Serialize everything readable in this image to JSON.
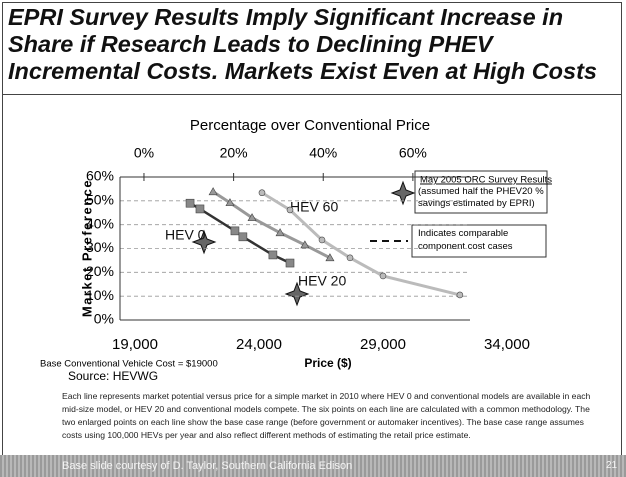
{
  "slide": {
    "title": "EPRI Survey Results Imply Significant Increase in Share if Research Leads to Declining PHEV Incremental Costs. Markets Exist Even at High Costs",
    "caption": "Each line represents market potential versus price for a simple market in 2010 where HEV 0 and conventional models are available in each mid-size model, or HEV 20 and conventional models compete. The six points on each line are calculated with a common methodology. The two enlarged points on each line show the base case range (before government or automaker incentives). The base case range assumes costs using 100,000 HEVs per year and also reflect different methods of estimating the retail price estimate.",
    "footer": "Base slide courtesy of D. Taylor, Southern California Edison",
    "page_number": "21"
  },
  "chart_data": {
    "type": "line",
    "title": "Percentage over Conventional Price",
    "x_label": "Price ($)",
    "y_label": "Market Preference",
    "annotations": [
      "May 2005 ORC Survey Results",
      "(assumed half the PHEV20 % savings estimated by EPRI)",
      "Indicates comparable component cost cases",
      "Base Conventional Vehicle Cost = $19000",
      "Source: HEVWG"
    ],
    "xlim": [
      19000,
      34000
    ],
    "xticks": [
      {
        "value": 19000,
        "label": "19,000"
      },
      {
        "value": 24000,
        "label": "24,000"
      },
      {
        "value": 29000,
        "label": "29,000"
      },
      {
        "value": 34000,
        "label": "34,000"
      }
    ],
    "x2lim": [
      -2,
      81
    ],
    "x2ticks": [
      {
        "value": 0,
        "label": "0%"
      },
      {
        "value": 20,
        "label": "20%"
      },
      {
        "value": 40,
        "label": "40%"
      },
      {
        "value": 60,
        "label": "60%"
      }
    ],
    "ylim": [
      0,
      60
    ],
    "yticks": [
      {
        "value": 0,
        "label": "0%"
      },
      {
        "value": 10,
        "label": "10%"
      },
      {
        "value": 20,
        "label": "20%"
      },
      {
        "value": 30,
        "label": "30%"
      },
      {
        "value": 40,
        "label": "40%"
      },
      {
        "value": 50,
        "label": "50%"
      },
      {
        "value": 60,
        "label": "60%"
      }
    ],
    "grid": true,
    "series": [
      {
        "name": "HEV 0",
        "color": "#333333",
        "marker": "square",
        "x": [
          21220,
          21620,
          23030,
          23350,
          24560,
          25250
        ],
        "values": [
          49,
          46.6,
          37.4,
          34.9,
          27.3,
          23.9
        ]
      },
      {
        "name": "HEV 60",
        "color": "#999999",
        "marker": "triangle",
        "x": [
          22150,
          22830,
          23720,
          24850,
          25850,
          26860
        ],
        "values": [
          53.8,
          49.2,
          42.9,
          36.6,
          31.5,
          26.1
        ]
      },
      {
        "name": "HEV 20",
        "color": "#bbbbbb",
        "marker": "circle",
        "x": [
          24120,
          25250,
          26540,
          27670,
          29000,
          32100
        ],
        "values": [
          53.4,
          46.2,
          33.6,
          26.1,
          18.5,
          10.5
        ]
      }
    ]
  }
}
